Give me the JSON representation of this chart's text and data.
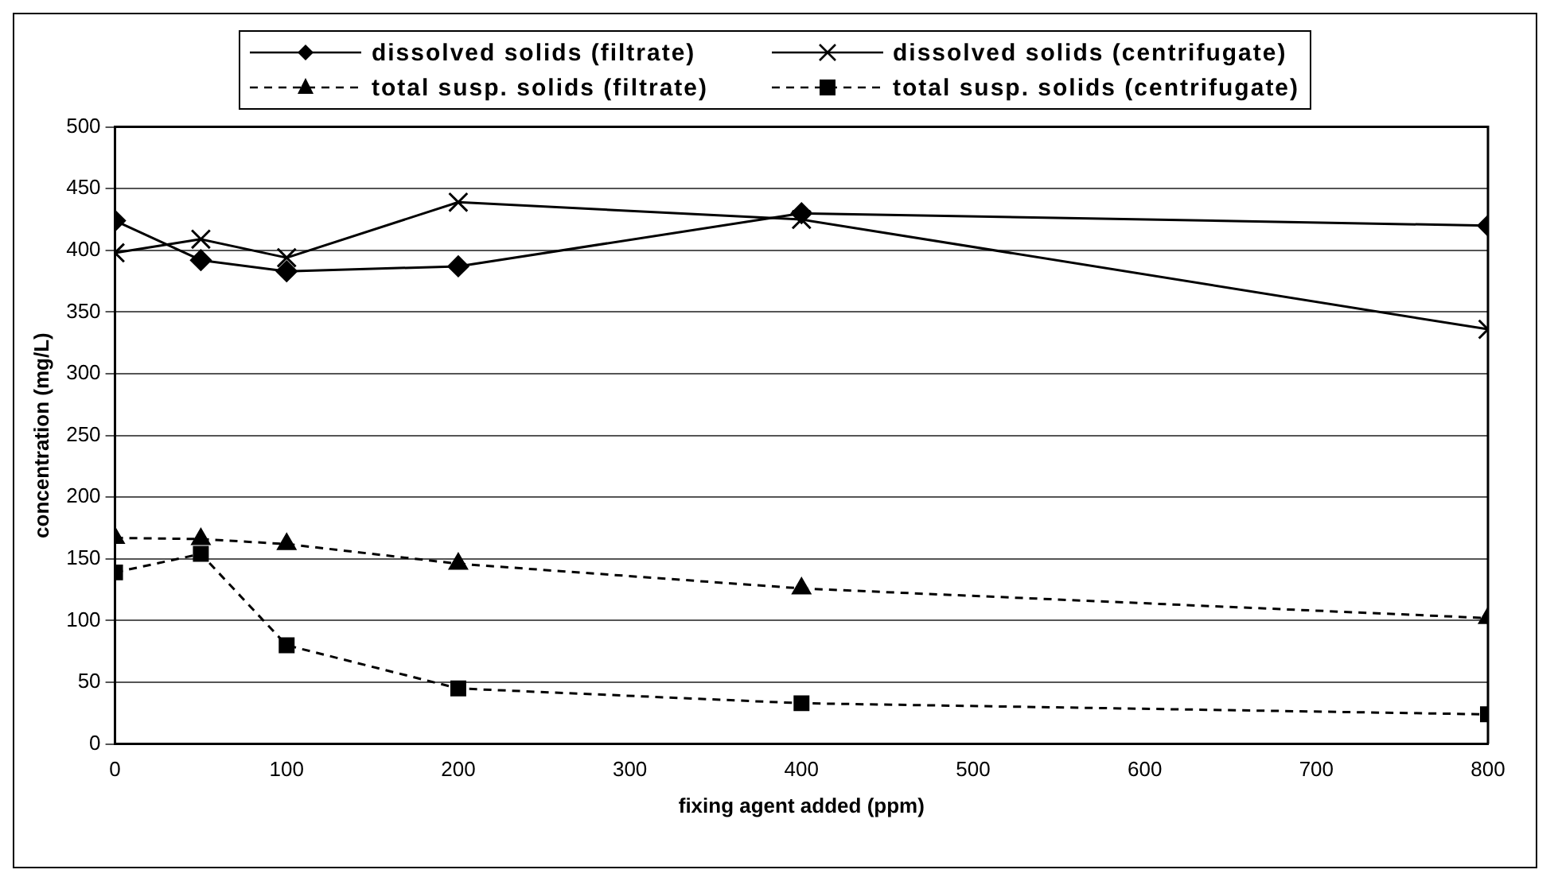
{
  "chart_data": {
    "type": "line",
    "xlabel": "fixing agent added (ppm)",
    "ylabel": "concentration (mg/L)",
    "x": [
      0,
      50,
      100,
      200,
      400,
      800
    ],
    "xlim": [
      0,
      800
    ],
    "xticks": [
      0,
      100,
      200,
      300,
      400,
      500,
      600,
      700,
      800
    ],
    "ylim": [
      0,
      500
    ],
    "yticks": [
      0,
      50,
      100,
      150,
      200,
      250,
      300,
      350,
      400,
      450,
      500
    ],
    "grid": "y",
    "legend": "top",
    "series": [
      {
        "name": "dissolved solids (filtrate)",
        "color": "#000000",
        "marker": "diamond",
        "line_style": "solid",
        "values": [
          424,
          392,
          383,
          387,
          430,
          420
        ]
      },
      {
        "name": "dissolved solids (centrifugate)",
        "color": "#000000",
        "marker": "cross",
        "line_style": "solid",
        "values": [
          398,
          409,
          394,
          439,
          425,
          336
        ]
      },
      {
        "name": "total susp. solids (filtrate)",
        "color": "#000000",
        "marker": "triangle",
        "line_style": "dashed",
        "values": [
          167,
          166,
          162,
          146,
          126,
          102
        ]
      },
      {
        "name": "total susp. solids (centrifugate)",
        "color": "#000000",
        "marker": "square",
        "line_style": "dashed",
        "values": [
          139,
          154,
          80,
          45,
          33,
          24
        ]
      }
    ]
  }
}
